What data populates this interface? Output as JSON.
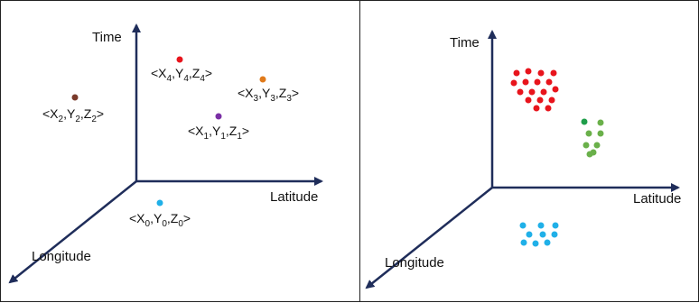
{
  "colors": {
    "axis": "#1f2d5a",
    "red": "#e8141c",
    "orange": "#e07a1a",
    "purple": "#7a2fa5",
    "brown": "#7a3a2a",
    "cyan": "#20b0e8",
    "green": "#6ab04a",
    "dark_green": "#1f9e4a"
  },
  "left_panel": {
    "axes": {
      "time": "Time",
      "latitude": "Latitude",
      "longitude": "Longitude"
    },
    "points": [
      {
        "name": "point-4",
        "color": "red",
        "label": [
          "<X",
          "4",
          ",Y",
          "4",
          ",Z",
          "4",
          ">"
        ]
      },
      {
        "name": "point-3",
        "color": "orange",
        "label": [
          "<X",
          "3",
          ",Y",
          "3",
          ",Z",
          "3",
          ">"
        ]
      },
      {
        "name": "point-2",
        "color": "brown",
        "label": [
          "<X",
          "2",
          ",Y",
          "2",
          ",Z",
          "2",
          ">"
        ]
      },
      {
        "name": "point-1",
        "color": "purple",
        "label": [
          "<X",
          "1",
          ",Y",
          "1",
          ",Z",
          "1",
          ">"
        ]
      },
      {
        "name": "point-0",
        "color": "cyan",
        "label": [
          "<X",
          "0",
          ",Y",
          "0",
          ",Z",
          "0",
          ">"
        ]
      }
    ]
  },
  "right_panel": {
    "axes": {
      "time": "Time",
      "latitude": "Latitude",
      "longitude": "Longitude"
    },
    "clusters": [
      {
        "name": "red-cluster",
        "color": "red",
        "count": 17
      },
      {
        "name": "green-cluster",
        "color": "green",
        "count": 8
      },
      {
        "name": "cyan-cluster",
        "color": "cyan",
        "count": 9
      }
    ]
  }
}
